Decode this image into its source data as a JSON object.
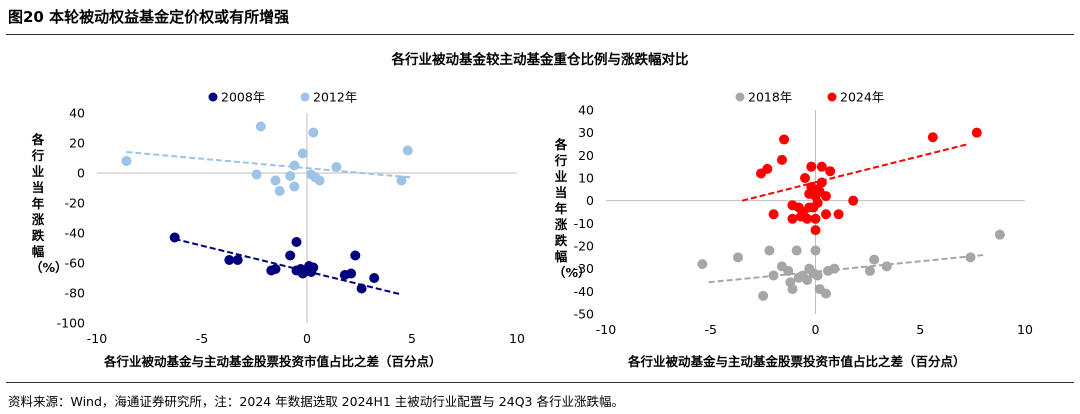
{
  "figure_title": "图20 本轮被动权益基金定价权或有所增强",
  "chart_title": "各行业被动基金较主动基金重仓比例与涨跌幅对比",
  "source_note": "资料来源：Wind，海通证券研究所，注：2024 年数据选取 2024H1 主被动行业配置与 24Q3 各行业涨跌幅。",
  "colors": {
    "s2008": "#00007f",
    "s2012": "#9dc3e6",
    "s2018": "#a6a6a6",
    "s2024": "#ff0000"
  },
  "chart_data": [
    {
      "type": "scatter",
      "xlabel": "各行业被动基金与主动基金股票投资市值占比之差（百分点）",
      "ylabel": "各行业当年涨跌幅（%）",
      "xlim": [
        -10,
        10
      ],
      "ylim": [
        -100,
        40
      ],
      "xticks": [
        "-10",
        "-5",
        "0",
        "5",
        "10"
      ],
      "yticks": [
        "40",
        "20",
        "0",
        "-20",
        "-40",
        "-60",
        "-80",
        "-100"
      ],
      "legend": "top-center",
      "series": [
        {
          "name": "2008年",
          "color_key": "s2008",
          "points": [
            [
              -6.3,
              -43
            ],
            [
              -3.7,
              -58
            ],
            [
              -3.3,
              -58
            ],
            [
              -1.7,
              -65
            ],
            [
              -1.5,
              -64
            ],
            [
              -0.8,
              -55
            ],
            [
              -0.5,
              -46
            ],
            [
              -0.5,
              -65
            ],
            [
              -0.3,
              -64
            ],
            [
              -0.2,
              -67
            ],
            [
              0.1,
              -62
            ],
            [
              0.2,
              -66
            ],
            [
              0.3,
              -63
            ],
            [
              1.8,
              -68
            ],
            [
              2.1,
              -67
            ],
            [
              2.3,
              -55
            ],
            [
              2.6,
              -77
            ],
            [
              3.2,
              -70
            ]
          ],
          "trend": [
            [
              -6.3,
              -44
            ],
            [
              4.5,
              -81
            ]
          ]
        },
        {
          "name": "2012年",
          "color_key": "s2012",
          "points": [
            [
              -8.6,
              8
            ],
            [
              -2.2,
              31
            ],
            [
              -2.4,
              -1
            ],
            [
              -1.5,
              -5
            ],
            [
              -1.3,
              -12
            ],
            [
              -0.8,
              -2
            ],
            [
              -0.6,
              5
            ],
            [
              -0.6,
              -9
            ],
            [
              -0.2,
              13
            ],
            [
              0.2,
              -1
            ],
            [
              0.3,
              27
            ],
            [
              0.4,
              -3
            ],
            [
              0.6,
              -5
            ],
            [
              1.4,
              4
            ],
            [
              4.5,
              -5
            ],
            [
              4.8,
              15
            ]
          ],
          "trend": [
            [
              -8.6,
              14
            ],
            [
              5.0,
              -3
            ]
          ]
        }
      ]
    },
    {
      "type": "scatter",
      "xlabel": "各行业被动基金与主动基金股票投资市值占比之差（百分点）",
      "ylabel": "各行业当年涨跌幅（%）",
      "xlim": [
        -10,
        10
      ],
      "ylim": [
        -50,
        40
      ],
      "xticks": [
        "-10",
        "-5",
        "0",
        "5",
        "10"
      ],
      "yticks": [
        "40",
        "30",
        "20",
        "10",
        "0",
        "-10",
        "-20",
        "-30",
        "-40",
        "-50"
      ],
      "legend": "top-center",
      "series": [
        {
          "name": "2018年",
          "color_key": "s2018",
          "points": [
            [
              -5.4,
              -28
            ],
            [
              -3.7,
              -25
            ],
            [
              -2.5,
              -42
            ],
            [
              -2.2,
              -22
            ],
            [
              -2.0,
              -33
            ],
            [
              -1.6,
              -29
            ],
            [
              -1.3,
              -31
            ],
            [
              -1.2,
              -36
            ],
            [
              -1.1,
              -39
            ],
            [
              -0.9,
              -22
            ],
            [
              -0.8,
              -34
            ],
            [
              -0.6,
              -33
            ],
            [
              -0.4,
              -35
            ],
            [
              -0.3,
              -30
            ],
            [
              -0.1,
              -32
            ],
            [
              0.0,
              -22
            ],
            [
              0.1,
              -33
            ],
            [
              0.2,
              -39
            ],
            [
              0.5,
              -41
            ],
            [
              0.6,
              -31
            ],
            [
              0.9,
              -30
            ],
            [
              2.6,
              -31
            ],
            [
              2.8,
              -26
            ],
            [
              3.4,
              -29
            ],
            [
              7.4,
              -25
            ],
            [
              8.8,
              -15
            ]
          ],
          "trend": [
            [
              -5.1,
              -36
            ],
            [
              8.0,
              -24
            ]
          ]
        },
        {
          "name": "2024年",
          "color_key": "s2024",
          "points": [
            [
              -2.6,
              12
            ],
            [
              -2.3,
              14
            ],
            [
              -2.0,
              -6
            ],
            [
              -1.6,
              18
            ],
            [
              -1.5,
              27
            ],
            [
              -1.1,
              -2
            ],
            [
              -1.1,
              -8
            ],
            [
              -0.8,
              -3
            ],
            [
              -0.7,
              -7
            ],
            [
              -0.6,
              -5
            ],
            [
              -0.5,
              10
            ],
            [
              -0.4,
              -8
            ],
            [
              -0.3,
              -3
            ],
            [
              -0.3,
              3
            ],
            [
              -0.2,
              6
            ],
            [
              -0.2,
              15
            ],
            [
              -0.1,
              -3
            ],
            [
              0.0,
              2
            ],
            [
              0.0,
              -8
            ],
            [
              0.0,
              -13
            ],
            [
              0.1,
              -1
            ],
            [
              0.1,
              5
            ],
            [
              0.2,
              4
            ],
            [
              0.3,
              15
            ],
            [
              0.3,
              8
            ],
            [
              0.5,
              -6
            ],
            [
              0.5,
              2
            ],
            [
              0.7,
              13
            ],
            [
              1.1,
              -6
            ],
            [
              1.8,
              0
            ],
            [
              5.6,
              28
            ],
            [
              7.7,
              30
            ]
          ],
          "trend": [
            [
              -3.5,
              0
            ],
            [
              7.3,
              25
            ]
          ]
        }
      ]
    }
  ]
}
